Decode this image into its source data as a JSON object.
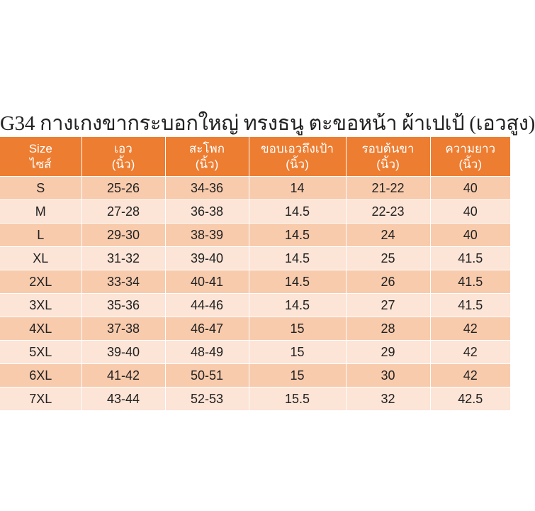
{
  "title": "G34  กางเกงขากระบอกใหญ่ ทรงธนู ตะขอหน้า ผ้าเปเป้ (เอวสูง)",
  "headers": [
    {
      "l1": "Size",
      "l2": "ไซส์"
    },
    {
      "l1": "เอว",
      "l2": "(นิ้ว)"
    },
    {
      "l1": "สะโพก",
      "l2": "(นิ้ว)"
    },
    {
      "l1": "ขอบเอวถึงเป้า",
      "l2": "(นิ้ว)"
    },
    {
      "l1": "รอบต้นขา",
      "l2": "(นิ้ว)"
    },
    {
      "l1": "ความยาว",
      "l2": "(นิ้ว)"
    }
  ],
  "rows": [
    [
      "S",
      "25-26",
      "34-36",
      "14",
      "21-22",
      "40"
    ],
    [
      "M",
      "27-28",
      "36-38",
      "14.5",
      "22-23",
      "40"
    ],
    [
      "L",
      "29-30",
      "38-39",
      "14.5",
      "24",
      "40"
    ],
    [
      "XL",
      "31-32",
      "39-40",
      "14.5",
      "25",
      "41.5"
    ],
    [
      "2XL",
      "33-34",
      "40-41",
      "14.5",
      "26",
      "41.5"
    ],
    [
      "3XL",
      "35-36",
      "44-46",
      "14.5",
      "27",
      "41.5"
    ],
    [
      "4XL",
      "37-38",
      "46-47",
      "15",
      "28",
      "42"
    ],
    [
      "5XL",
      "39-40",
      "48-49",
      "15",
      "29",
      "42"
    ],
    [
      "6XL",
      "41-42",
      "50-51",
      "15",
      "30",
      "42"
    ],
    [
      "7XL",
      "43-44",
      "52-53",
      "15.5",
      "32",
      "42.5"
    ]
  ],
  "colors": {
    "header": "#ED7D31",
    "row_dark": "#F8CBAD",
    "row_light": "#FCE4D6"
  }
}
